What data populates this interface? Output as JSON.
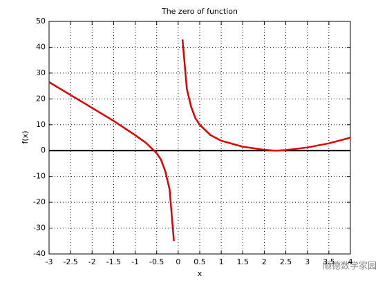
{
  "chart_data": {
    "type": "line",
    "title": "The zero of function",
    "x_label": "x",
    "y_label": "f(x)",
    "series": [
      {
        "color": "#e00000",
        "x": [
          -3,
          -2.5,
          -2,
          -1.5,
          -1,
          -0.75,
          -0.5,
          -0.4,
          -0.3,
          -0.2,
          -0.15,
          -0.1
        ],
        "values": [
          26.5,
          21.5,
          16.5,
          11.5,
          6,
          3,
          -1,
          -3.5,
          -8,
          -15,
          -25,
          -35
        ]
      },
      {
        "color": "#e00000",
        "x": [
          0.1,
          0.2,
          0.3,
          0.4,
          0.5,
          0.75,
          1,
          1.5,
          2,
          2.25,
          2.5,
          3,
          3.5,
          4
        ],
        "values": [
          43,
          24,
          17,
          12.5,
          10,
          6,
          3.8,
          1.5,
          0.3,
          0,
          0.2,
          1.2,
          2.8,
          5
        ]
      }
    ],
    "hline": 0,
    "xlim": [
      -3,
      4
    ],
    "xticks": [
      -3,
      -2.5,
      -2,
      -1.5,
      -1,
      -0.5,
      0,
      0.5,
      1,
      1.5,
      2,
      2.5,
      3,
      3.5,
      4
    ],
    "ylim": [
      -40,
      50
    ],
    "yticks": [
      -40,
      -30,
      -20,
      -10,
      0,
      10,
      20,
      30,
      40,
      50
    ],
    "grid": true,
    "watermark": "顺德数学家园"
  }
}
